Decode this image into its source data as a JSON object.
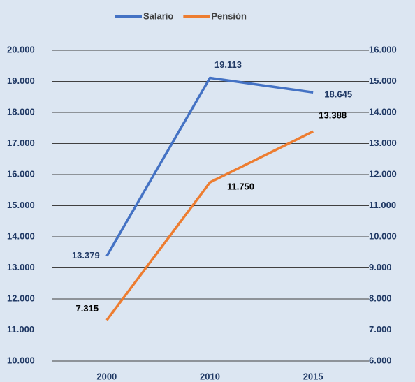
{
  "chart_data": {
    "type": "line",
    "categories": [
      "2000",
      "2010",
      "2015"
    ],
    "series": [
      {
        "name": "Salario",
        "color": "#4472c4",
        "values": [
          13379,
          19113,
          18645
        ],
        "value_labels": [
          "13.379",
          "19.113",
          "18.645"
        ]
      },
      {
        "name": "Pensión",
        "color": "#ed7d31",
        "axis": "y2",
        "values": [
          7315,
          11750,
          13388
        ],
        "value_labels": [
          "7.315",
          "11.750",
          "13.388"
        ]
      }
    ],
    "ylim": [
      10000,
      20000
    ],
    "yticks": [
      {
        "value": 10000,
        "label": "10.000"
      },
      {
        "value": 11000,
        "label": "11.000"
      },
      {
        "value": 12000,
        "label": "12.000"
      },
      {
        "value": 13000,
        "label": "13.000"
      },
      {
        "value": 14000,
        "label": "14.000"
      },
      {
        "value": 15000,
        "label": "15.000"
      },
      {
        "value": 16000,
        "label": "16.000"
      },
      {
        "value": 17000,
        "label": "17.000"
      },
      {
        "value": 18000,
        "label": "18.000"
      },
      {
        "value": 19000,
        "label": "19.000"
      },
      {
        "value": 20000,
        "label": "20.000"
      }
    ],
    "y2lim": [
      6000,
      16000
    ],
    "y2ticks": [
      {
        "value": 6000,
        "label": "6.000"
      },
      {
        "value": 7000,
        "label": "7.000"
      },
      {
        "value": 8000,
        "label": "8.000"
      },
      {
        "value": 9000,
        "label": "9.000"
      },
      {
        "value": 10000,
        "label": "10.000"
      },
      {
        "value": 11000,
        "label": "11.000"
      },
      {
        "value": 12000,
        "label": "12.000"
      },
      {
        "value": 13000,
        "label": "13.000"
      },
      {
        "value": 14000,
        "label": "14.000"
      },
      {
        "value": 15000,
        "label": "15.000"
      },
      {
        "value": 16000,
        "label": "16.000"
      }
    ],
    "grid": true,
    "legend": "top"
  }
}
